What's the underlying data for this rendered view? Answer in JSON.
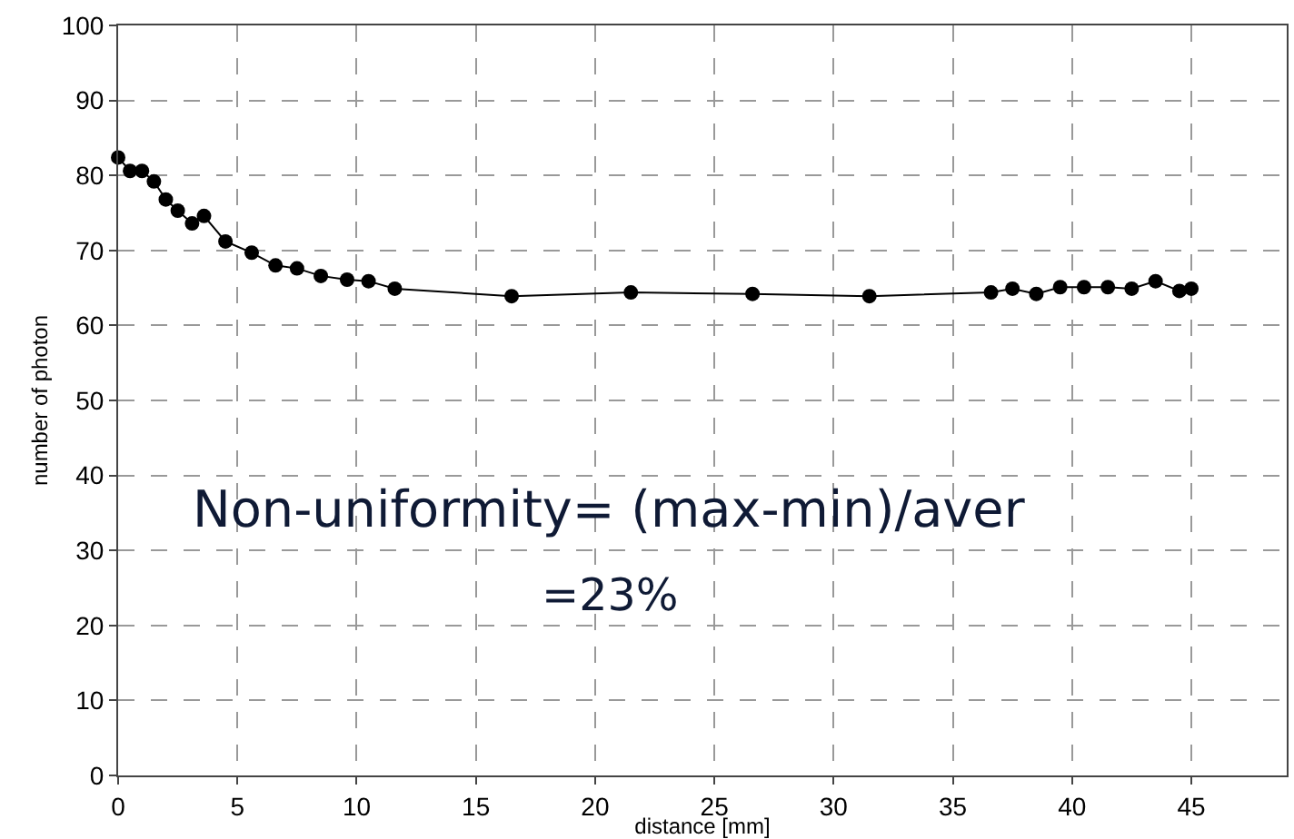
{
  "chart_data": {
    "type": "line",
    "xlabel": "distance [mm]",
    "ylabel": "number of photon",
    "annotations": [
      "Non-uniformity= (max-min)/aver",
      "=23%"
    ],
    "x": [
      0,
      0.5,
      1,
      1.5,
      2,
      2.5,
      3.1,
      3.6,
      4.5,
      5.6,
      6.6,
      7.5,
      8.5,
      9.6,
      10.5,
      11.6,
      16.5,
      21.5,
      26.6,
      31.5,
      36.6,
      37.5,
      38.5,
      39.5,
      40.5,
      41.5,
      42.5,
      43.5,
      44.5,
      45
    ],
    "series": [
      {
        "color": "#000000",
        "values": [
          82.4,
          80.6,
          80.6,
          79.2,
          76.8,
          75.3,
          73.6,
          74.6,
          71.2,
          69.7,
          68.0,
          67.6,
          66.6,
          66.1,
          65.9,
          64.9,
          63.9,
          64.4,
          64.2,
          63.9,
          64.4,
          64.9,
          64.2,
          65.1,
          65.1,
          65.1,
          64.9,
          65.9,
          64.6,
          64.9
        ]
      }
    ],
    "xlim": [
      0,
      49
    ],
    "ylim": [
      0,
      100
    ],
    "xticks": [
      0,
      5,
      10,
      15,
      20,
      25,
      30,
      35,
      40,
      45
    ],
    "yticks": [
      0,
      10,
      20,
      30,
      40,
      50,
      60,
      70,
      80,
      90,
      100
    ],
    "grid": true,
    "marker": "circle",
    "line_style": "solid"
  }
}
